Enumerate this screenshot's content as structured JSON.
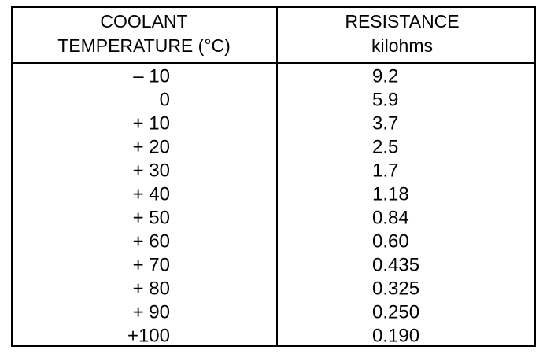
{
  "table": {
    "header": [
      [
        "COOLANT",
        "TEMPERATURE (°C)"
      ],
      [
        "RESISTANCE",
        "kilohms"
      ]
    ],
    "rows": [
      [
        "– 10",
        "9.2"
      ],
      [
        "0",
        "5.9"
      ],
      [
        "+ 10",
        "3.7"
      ],
      [
        "+ 20",
        "2.5"
      ],
      [
        "+ 30",
        "1.7"
      ],
      [
        "+ 40",
        "1.18"
      ],
      [
        "+ 50",
        "0.84"
      ],
      [
        "+ 60",
        "0.60"
      ],
      [
        "+ 70",
        "0.435"
      ],
      [
        "+ 80",
        "0.325"
      ],
      [
        "+ 90",
        "0.250"
      ],
      [
        "+100",
        "0.190"
      ]
    ]
  }
}
